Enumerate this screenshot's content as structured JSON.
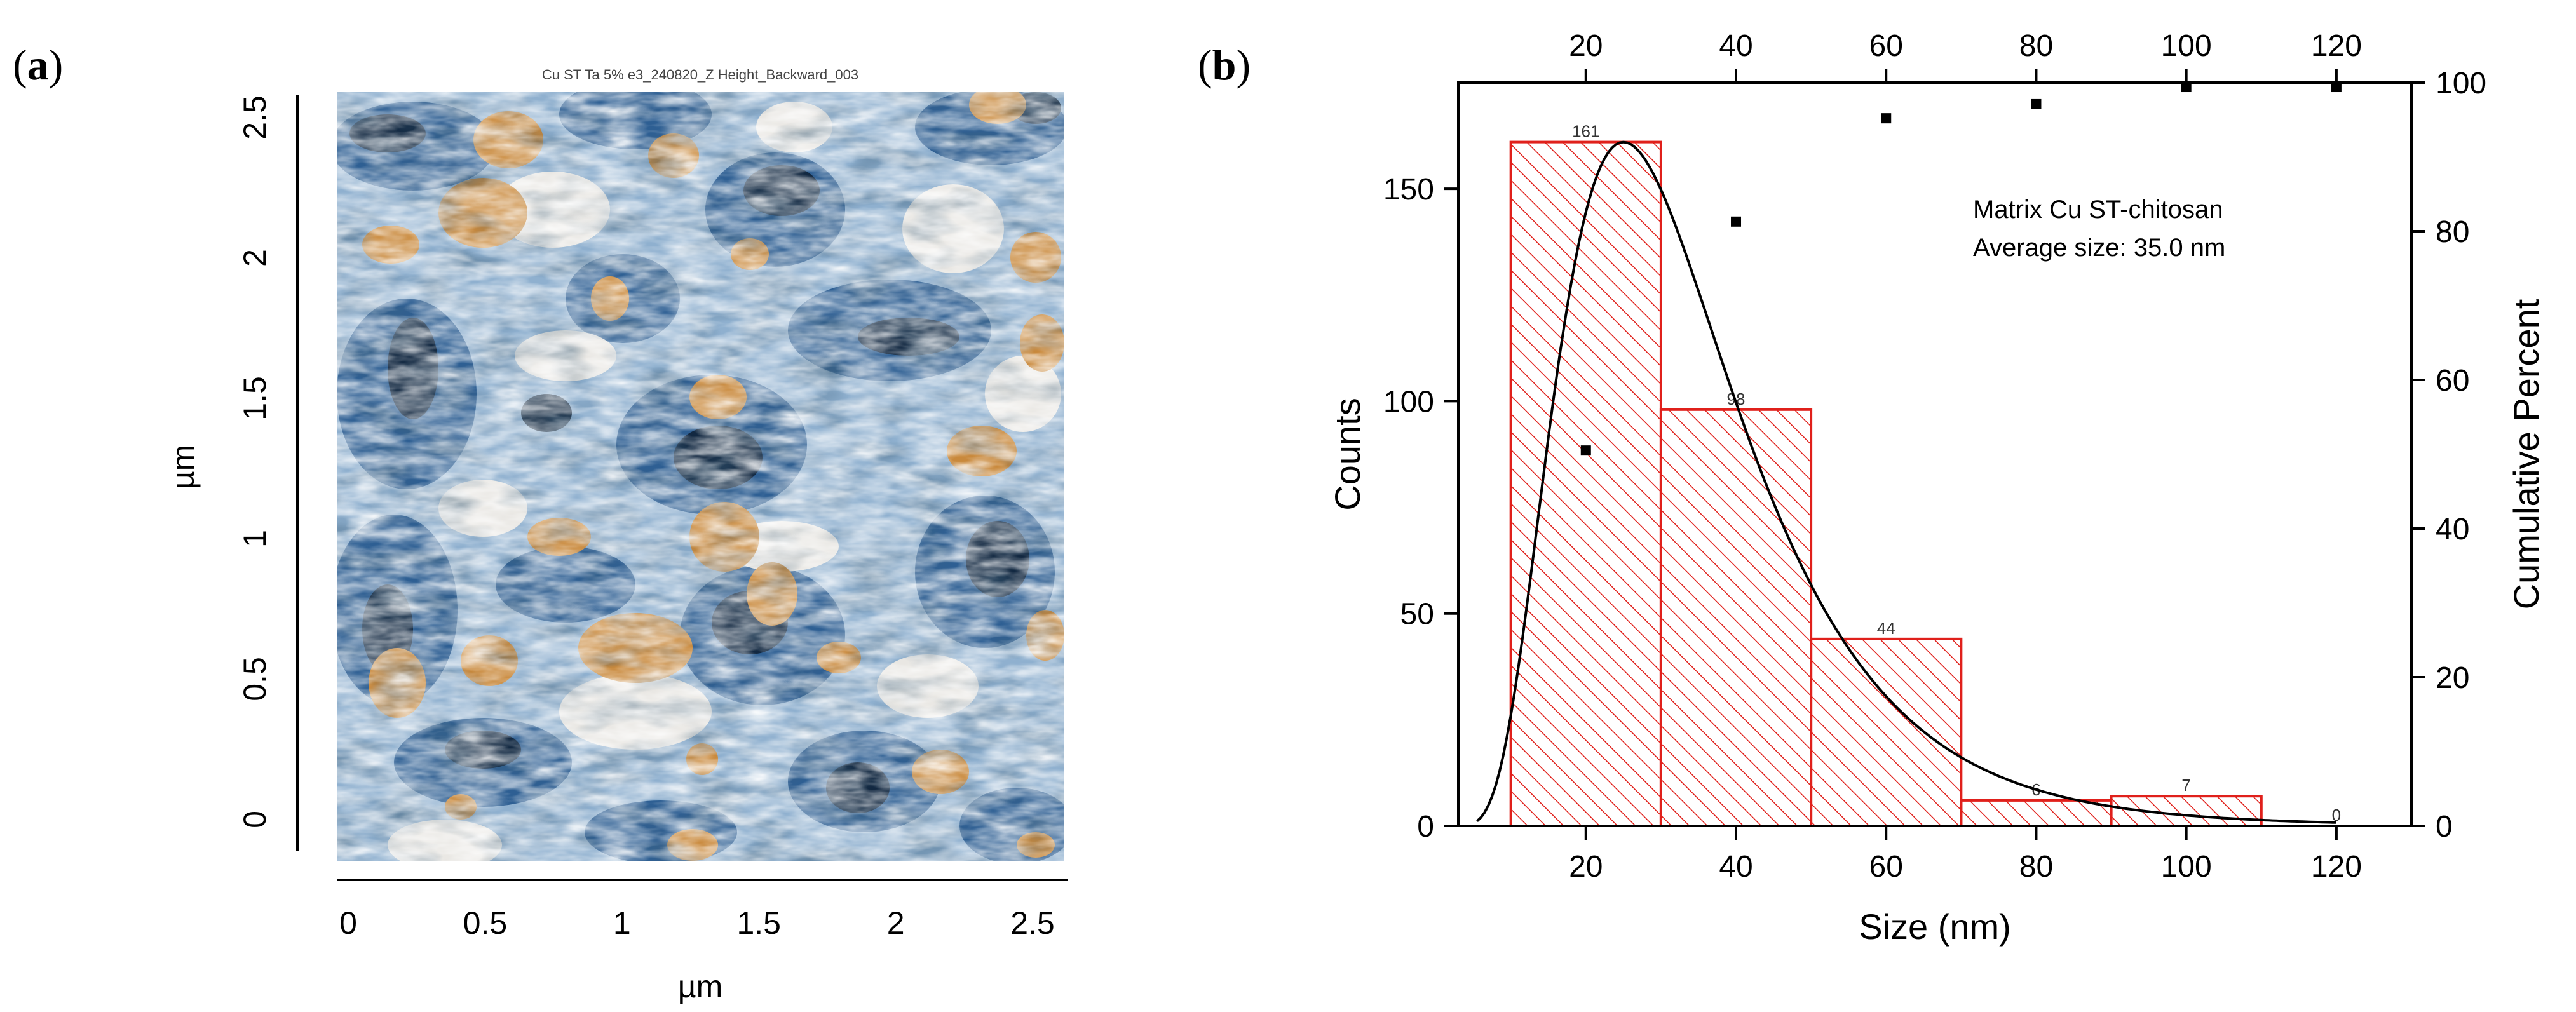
{
  "panel_a": {
    "letter": "a",
    "image_title": "Cu ST Ta 5% e3_240820_Z Height_Backward_003",
    "x_axis": {
      "label": "µm",
      "ticks": [
        "0",
        "0.5",
        "1",
        "1.5",
        "2",
        "2.5"
      ]
    },
    "y_axis": {
      "label": "µm",
      "ticks": [
        "0",
        "0.5",
        "1",
        "1.5",
        "2",
        "2.5"
      ]
    },
    "colors": {
      "blue_dark": "#0d1f33",
      "blue": "#2e5f93",
      "blue_light": "#8fb0cf",
      "white": "#f3ede4",
      "orange": "#c9893c"
    }
  },
  "chart_data": {
    "type": "bar",
    "letter": "b",
    "annotation": [
      "Matrix Cu ST-chitosan",
      "Average size: 35.0 nm"
    ],
    "xlabel": "Size (nm)",
    "ylabel": "Counts",
    "y2label": "Cumulative Percent",
    "xlim": [
      3,
      130
    ],
    "ylim": [
      0,
      175
    ],
    "y2lim": [
      0,
      100
    ],
    "xticks": [
      20,
      40,
      60,
      80,
      100,
      120
    ],
    "top_xticks": [
      20,
      40,
      60,
      80,
      100,
      120
    ],
    "yticks": [
      0,
      50,
      100,
      150
    ],
    "y2ticks": [
      0,
      20,
      40,
      60,
      80,
      100
    ],
    "bins": [
      {
        "start": 10,
        "end": 30,
        "count": 161,
        "label": "161"
      },
      {
        "start": 30,
        "end": 50,
        "count": 98,
        "label": "98"
      },
      {
        "start": 50,
        "end": 70,
        "count": 44,
        "label": "44"
      },
      {
        "start": 70,
        "end": 90,
        "count": 6,
        "label": "6"
      },
      {
        "start": 90,
        "end": 110,
        "count": 7,
        "label": "7"
      },
      {
        "start": 110,
        "end": 130,
        "count": 0,
        "label": "0"
      }
    ],
    "cumulative": {
      "x": [
        20,
        40,
        60,
        80,
        100,
        120
      ],
      "y": [
        50.5,
        81.3,
        95.2,
        97.1,
        99.4,
        99.4
      ]
    },
    "fit_curve": {
      "type": "lognormal",
      "peak_x": 25,
      "peak_count": 161
    },
    "colors": {
      "bar": "#e0201b",
      "fit": "#000000",
      "points": "#000000",
      "axis": "#000000"
    }
  }
}
